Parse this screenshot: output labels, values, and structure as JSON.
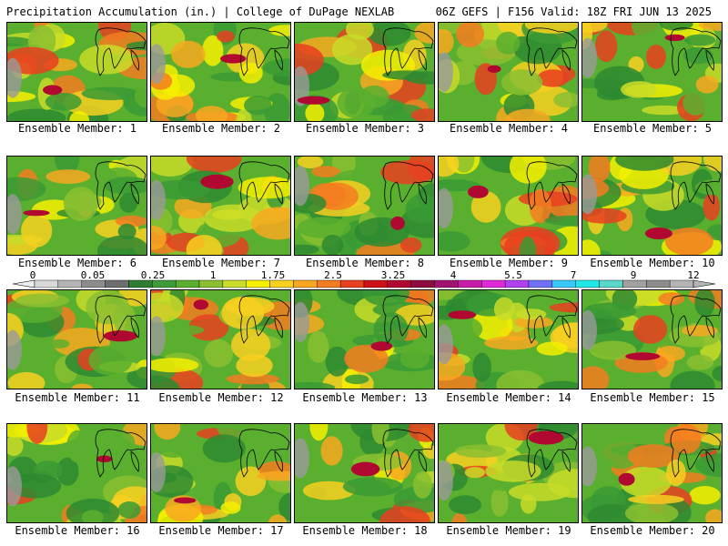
{
  "header": {
    "title_left": "Precipitation Accumulation (in.) | College of DuPage NEXLAB",
    "title_right": "06Z GEFS | F156 Valid: 18Z FRI JUN 13 2025"
  },
  "caption_prefix": "Ensemble Member:",
  "members": [
    1,
    2,
    3,
    4,
    5,
    6,
    7,
    8,
    9,
    10,
    11,
    12,
    13,
    14,
    15,
    16,
    17,
    18,
    19,
    20
  ],
  "colorbar": {
    "labels": [
      "0",
      "0.05",
      "0.25",
      "1",
      "1.75",
      "2.5",
      "3.25",
      "4",
      "5.5",
      "7",
      "9",
      "12"
    ],
    "colors": [
      "#d8d8d8",
      "#b4b4b4",
      "#8c8c8c",
      "#6e6e6e",
      "#2e7d32",
      "#3f9a3a",
      "#5aaf2e",
      "#8ac030",
      "#c8dc28",
      "#f4f000",
      "#f8d020",
      "#f8a820",
      "#f47c20",
      "#e84020",
      "#d01018",
      "#b00830",
      "#8c0c40",
      "#a01470",
      "#c81ca8",
      "#e028d8",
      "#b040f0",
      "#7070f8",
      "#38c8f8",
      "#20e8e8",
      "#58d8c8",
      "#a0a0a0",
      "#8c8c8c",
      "#b4b4b4"
    ]
  }
}
